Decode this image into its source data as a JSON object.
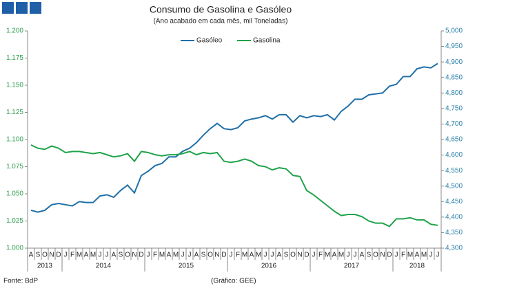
{
  "chart_data": {
    "type": "line",
    "title": "Consumo de Gasolina e Gasóleo",
    "subtitle": "(Ano acabado em cada mês, mil Toneladas)",
    "source": "Fonte: BdP",
    "credit": "(Gráfico: GEE)",
    "legend": "top",
    "categories": [
      {
        "month": "A",
        "year": "2013"
      },
      {
        "month": "S",
        "year": "2013"
      },
      {
        "month": "O",
        "year": "2013"
      },
      {
        "month": "N",
        "year": "2013"
      },
      {
        "month": "D",
        "year": "2013"
      },
      {
        "month": "J",
        "year": "2014"
      },
      {
        "month": "F",
        "year": "2014"
      },
      {
        "month": "M",
        "year": "2014"
      },
      {
        "month": "A",
        "year": "2014"
      },
      {
        "month": "M",
        "year": "2014"
      },
      {
        "month": "J",
        "year": "2014"
      },
      {
        "month": "J",
        "year": "2014"
      },
      {
        "month": "A",
        "year": "2014"
      },
      {
        "month": "S",
        "year": "2014"
      },
      {
        "month": "O",
        "year": "2014"
      },
      {
        "month": "N",
        "year": "2014"
      },
      {
        "month": "D",
        "year": "2014"
      },
      {
        "month": "J",
        "year": "2015"
      },
      {
        "month": "F",
        "year": "2015"
      },
      {
        "month": "M",
        "year": "2015"
      },
      {
        "month": "A",
        "year": "2015"
      },
      {
        "month": "M",
        "year": "2015"
      },
      {
        "month": "J",
        "year": "2015"
      },
      {
        "month": "J",
        "year": "2015"
      },
      {
        "month": "A",
        "year": "2015"
      },
      {
        "month": "S",
        "year": "2015"
      },
      {
        "month": "O",
        "year": "2015"
      },
      {
        "month": "N",
        "year": "2015"
      },
      {
        "month": "D",
        "year": "2015"
      },
      {
        "month": "J",
        "year": "2016"
      },
      {
        "month": "F",
        "year": "2016"
      },
      {
        "month": "M",
        "year": "2016"
      },
      {
        "month": "A",
        "year": "2016"
      },
      {
        "month": "M",
        "year": "2016"
      },
      {
        "month": "J",
        "year": "2016"
      },
      {
        "month": "J",
        "year": "2016"
      },
      {
        "month": "A",
        "year": "2016"
      },
      {
        "month": "S",
        "year": "2016"
      },
      {
        "month": "O",
        "year": "2016"
      },
      {
        "month": "N",
        "year": "2016"
      },
      {
        "month": "D",
        "year": "2016"
      },
      {
        "month": "J",
        "year": "2017"
      },
      {
        "month": "F",
        "year": "2017"
      },
      {
        "month": "M",
        "year": "2017"
      },
      {
        "month": "A",
        "year": "2017"
      },
      {
        "month": "M",
        "year": "2017"
      },
      {
        "month": "J",
        "year": "2017"
      },
      {
        "month": "J",
        "year": "2017"
      },
      {
        "month": "A",
        "year": "2017"
      },
      {
        "month": "S",
        "year": "2017"
      },
      {
        "month": "O",
        "year": "2017"
      },
      {
        "month": "N",
        "year": "2017"
      },
      {
        "month": "D",
        "year": "2017"
      },
      {
        "month": "J",
        "year": "2018"
      },
      {
        "month": "F",
        "year": "2018"
      },
      {
        "month": "M",
        "year": "2018"
      },
      {
        "month": "A",
        "year": "2018"
      },
      {
        "month": "M",
        "year": "2018"
      },
      {
        "month": "J",
        "year": "2018"
      },
      {
        "month": "J",
        "year": "2018"
      }
    ],
    "series": [
      {
        "name": "Gasóleo",
        "color": "#1f6fa8",
        "axis": "y2",
        "values": [
          4422,
          4416,
          4422,
          4440,
          4444,
          4440,
          4436,
          4450,
          4447,
          4447,
          4468,
          4472,
          4464,
          4486,
          4503,
          4478,
          4534,
          4548,
          4566,
          4573,
          4594,
          4594,
          4612,
          4622,
          4640,
          4664,
          4685,
          4702,
          4685,
          4682,
          4688,
          4710,
          4716,
          4720,
          4727,
          4716,
          4730,
          4730,
          4706,
          4727,
          4720,
          4727,
          4724,
          4730,
          4713,
          4741,
          4758,
          4780,
          4780,
          4794,
          4797,
          4800,
          4822,
          4828,
          4853,
          4853,
          4878,
          4884,
          4881,
          4895
        ]
      },
      {
        "name": "Gasolina",
        "color": "#1fa34a",
        "values": [
          1095,
          1092,
          1091,
          1094,
          1092,
          1088,
          1089,
          1089,
          1088,
          1087,
          1088,
          1086,
          1084,
          1085,
          1087,
          1080,
          1089,
          1088,
          1086,
          1085,
          1086,
          1086,
          1087,
          1089,
          1086,
          1088,
          1087,
          1088,
          1080,
          1079,
          1080,
          1082,
          1080,
          1076,
          1075,
          1072,
          1074,
          1073,
          1067,
          1066,
          1053,
          1049,
          1044,
          1039,
          1034,
          1030,
          1031,
          1031,
          1029,
          1025,
          1023,
          1023,
          1020,
          1027,
          1027,
          1028,
          1026,
          1026,
          1022,
          1021
        ]
      }
    ],
    "ylim": [
      1000,
      1200
    ],
    "yticks": [
      {
        "value": 1000,
        "label": "1.000"
      },
      {
        "value": 1025,
        "label": "1.025"
      },
      {
        "value": 1050,
        "label": "1.050"
      },
      {
        "value": 1075,
        "label": "1.075"
      },
      {
        "value": 1100,
        "label": "1.100"
      },
      {
        "value": 1125,
        "label": "1.125"
      },
      {
        "value": 1150,
        "label": "1.150"
      },
      {
        "value": 1175,
        "label": "1.175"
      },
      {
        "value": 1200,
        "label": "1.200"
      }
    ],
    "ytick_color": "#2e9e4f",
    "y2lim": [
      4300,
      5000
    ],
    "y2ticks": [
      {
        "value": 4300,
        "label": "4,300"
      },
      {
        "value": 4350,
        "label": "4,350"
      },
      {
        "value": 4400,
        "label": "4,400"
      },
      {
        "value": 4450,
        "label": "4,450"
      },
      {
        "value": 4500,
        "label": "4,500"
      },
      {
        "value": 4550,
        "label": "4,550"
      },
      {
        "value": 4600,
        "label": "4,600"
      },
      {
        "value": 4650,
        "label": "4,650"
      },
      {
        "value": 4700,
        "label": "4,700"
      },
      {
        "value": 4750,
        "label": "4,750"
      },
      {
        "value": 4800,
        "label": "4,800"
      },
      {
        "value": 4850,
        "label": "4,850"
      },
      {
        "value": 4900,
        "label": "4,900"
      },
      {
        "value": 4950,
        "label": "4,950"
      },
      {
        "value": 5000,
        "label": "5,000"
      }
    ],
    "y2tick_color": "#2a7fa8"
  }
}
